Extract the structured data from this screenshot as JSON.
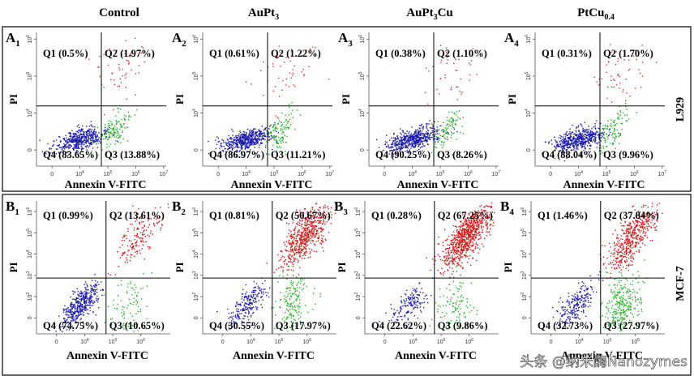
{
  "columns": [
    {
      "main": "Control"
    },
    {
      "main": "AuPt",
      "sub": "3"
    },
    {
      "main": "AuPt",
      "sub": "3",
      "tail": "Cu"
    },
    {
      "main": "PtCu",
      "sub": "0.4"
    }
  ],
  "rows": [
    {
      "label": "L929",
      "x_axis_label": "Annexin V-FITC",
      "y_axis_label": "PI",
      "x_ticks": [
        {
          "base": "0"
        },
        {
          "base": "10",
          "exp": "4"
        },
        {
          "base": "10",
          "exp": "5"
        },
        {
          "base": "10",
          "exp": "6"
        },
        {
          "base": "10",
          "exp": "7"
        }
      ],
      "y_ticks": [
        {
          "base": "0"
        },
        {
          "base": "10",
          "exp": "4"
        },
        {
          "base": "10",
          "exp": "5"
        },
        {
          "base": "10",
          "exp": "6"
        }
      ],
      "panels": [
        {
          "letter": "A",
          "index": "1",
          "q1": "Q1 (0.5%)",
          "q2": "Q2 (1.97%)",
          "q3": "Q3 (13.88%)",
          "q4": "Q4 (83.65%)"
        },
        {
          "letter": "A",
          "index": "2",
          "q1": "Q1 (0.61%)",
          "q2": "Q2 (1.22%)",
          "q3": "Q3 (11.21%)",
          "q4": "Q4 (86.97%)"
        },
        {
          "letter": "A",
          "index": "3",
          "q1": "Q1 (0.38%)",
          "q2": "Q2 (1.10%)",
          "q3": "Q3 (8.26%)",
          "q4": "Q4 (90.25%)"
        },
        {
          "letter": "A",
          "index": "4",
          "q1": "Q1 (0.31%)",
          "q2": "Q2 (1.70%)",
          "q3": "Q3 (9.96%)",
          "q4": "Q4 (88.04%)"
        }
      ]
    },
    {
      "label": "MCF-7",
      "x_axis_label": "Annexin V-FITC",
      "y_axis_label": "PI",
      "x_ticks": [
        {
          "base": "0"
        },
        {
          "base": "10",
          "exp": "4"
        },
        {
          "base": "10",
          "exp": "5"
        },
        {
          "base": "10",
          "exp": "6"
        }
      ],
      "y_ticks": [
        {
          "base": "0"
        },
        {
          "base": "10",
          "exp": "2"
        },
        {
          "base": "10",
          "exp": "3"
        },
        {
          "base": "10",
          "exp": "4"
        },
        {
          "base": "10",
          "exp": "5"
        },
        {
          "base": "10",
          "exp": "6"
        }
      ],
      "panels": [
        {
          "letter": "B",
          "index": "1",
          "q1": "Q1 (0.99%)",
          "q2": "Q2 (13.61%)",
          "q3": "Q3 (10.65%)",
          "q4": "Q4 (74.75%)"
        },
        {
          "letter": "B",
          "index": "2",
          "q1": "Q1 (0.81%)",
          "q2": "Q2 (50.67%)",
          "q3": "Q3 (17.97%)",
          "q4": "Q4 (30.55%)"
        },
        {
          "letter": "B",
          "index": "3",
          "q1": "Q1 (0.28%)",
          "q2": "Q2 (67.25%)",
          "q3": "Q3 (9.86%)",
          "q4": "Q4 (22.62%)"
        },
        {
          "letter": "B",
          "index": "4",
          "q1": "Q1 (1.46%)",
          "q2": "Q2 (37.84%)",
          "q3": "Q3 (27.97%)",
          "q4": "Q4 (32.73%)"
        }
      ]
    }
  ],
  "watermark": "头条 @纳米酶Nanozymes"
}
